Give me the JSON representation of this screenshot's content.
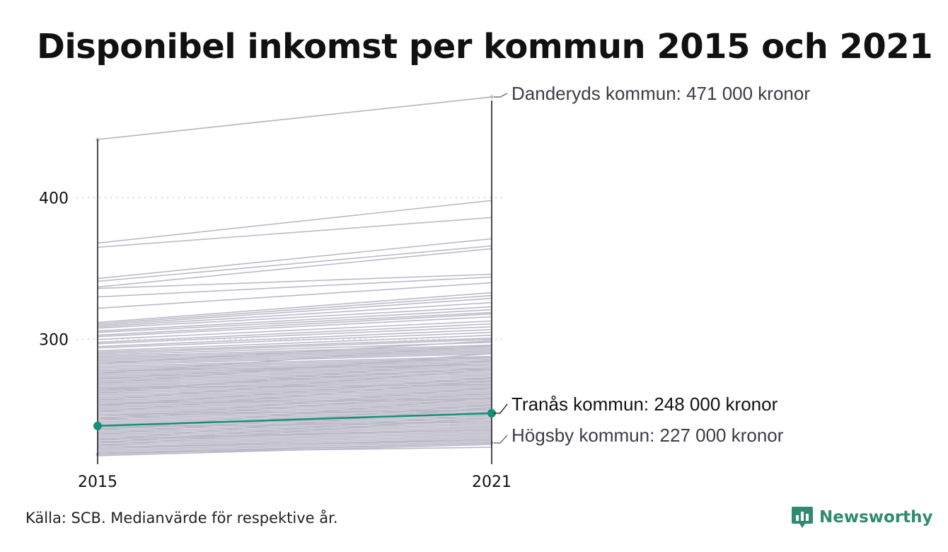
{
  "title": "Disponibel inkomst per kommun 2015 och 2021",
  "source": "Källa: SCB. Medianvärde för respektive år.",
  "brand": {
    "name": "Newsworthy",
    "color": "#2f8a72"
  },
  "colors": {
    "background_lines": "#bcbac8",
    "highlight": "#14907a",
    "axis": "#111111",
    "grid": "#d8d8d8"
  },
  "chart_data": {
    "type": "line",
    "title": "Disponibel inkomst per kommun 2015 och 2021",
    "x": [
      "2015",
      "2021"
    ],
    "ylim": [
      212,
      483
    ],
    "yticks": [
      300,
      400
    ],
    "ytick_labels": [
      "300",
      "400"
    ],
    "xtick_labels": [
      "2015",
      "2021"
    ],
    "grid": "horizontal dotted at y ticks",
    "legend": "none",
    "labeled_series": [
      {
        "name": "Danderyds kommun",
        "values": [
          441,
          471
        ],
        "label": "Danderyds kommun: 471 000 kronor",
        "highlight": false
      },
      {
        "name": "Tranås kommun",
        "values": [
          239,
          248
        ],
        "label": "Tranås kommun: 248 000 kronor",
        "highlight": true
      },
      {
        "name": "Högsby kommun",
        "values": [
          219,
          227
        ],
        "label": "Högsby kommun: 227 000 kronor",
        "highlight": false
      }
    ],
    "other_series": [
      [
        368,
        398
      ],
      [
        365,
        386
      ],
      [
        343,
        371
      ],
      [
        341,
        366
      ],
      [
        337,
        364
      ],
      [
        336,
        346
      ],
      [
        330,
        344
      ],
      [
        322,
        340
      ],
      [
        312,
        333
      ],
      [
        311,
        331
      ],
      [
        310,
        329
      ],
      [
        309,
        326
      ],
      [
        308,
        323
      ],
      [
        306,
        321
      ],
      [
        305,
        319
      ],
      [
        303,
        318
      ],
      [
        302,
        316
      ],
      [
        300,
        313
      ],
      [
        298,
        311
      ],
      [
        297,
        309
      ],
      [
        295,
        307
      ],
      [
        294,
        305
      ],
      [
        292,
        303
      ],
      [
        291,
        301
      ],
      [
        290,
        300
      ],
      [
        289,
        298
      ],
      [
        288,
        296
      ],
      [
        287,
        295
      ],
      [
        286,
        294
      ],
      [
        285,
        293
      ],
      [
        284,
        292
      ],
      [
        283,
        291
      ],
      [
        282,
        290
      ],
      [
        281,
        288
      ],
      [
        280,
        287
      ],
      [
        279,
        286
      ],
      [
        278,
        285
      ],
      [
        277,
        284
      ],
      [
        276,
        283
      ],
      [
        275,
        282
      ],
      [
        274,
        281
      ],
      [
        273,
        280
      ],
      [
        272,
        279
      ],
      [
        271,
        278
      ],
      [
        270,
        277
      ],
      [
        269,
        276
      ],
      [
        268,
        275
      ],
      [
        267,
        274
      ],
      [
        266,
        273
      ],
      [
        265,
        272
      ],
      [
        264,
        271
      ],
      [
        263,
        270
      ],
      [
        262,
        269
      ],
      [
        261,
        268
      ],
      [
        260,
        267
      ],
      [
        259,
        266
      ],
      [
        258,
        265
      ],
      [
        257,
        264
      ],
      [
        256,
        263
      ],
      [
        255,
        262
      ],
      [
        254,
        261
      ],
      [
        253,
        260
      ],
      [
        252,
        259
      ],
      [
        251,
        258
      ],
      [
        250,
        257
      ],
      [
        249,
        256
      ],
      [
        248,
        255
      ],
      [
        247,
        254
      ],
      [
        246,
        253
      ],
      [
        245,
        252
      ],
      [
        244,
        251
      ],
      [
        243,
        250
      ],
      [
        242,
        249
      ],
      [
        241,
        248
      ],
      [
        240,
        247
      ],
      [
        239,
        246
      ],
      [
        238,
        245
      ],
      [
        237,
        244
      ],
      [
        236,
        243
      ],
      [
        235,
        242
      ],
      [
        234,
        241
      ],
      [
        233,
        240
      ],
      [
        232,
        239
      ],
      [
        231,
        238
      ],
      [
        230,
        237
      ],
      [
        229,
        236
      ],
      [
        228,
        235
      ],
      [
        227,
        234
      ],
      [
        226,
        233
      ],
      [
        225,
        232
      ],
      [
        224,
        231
      ],
      [
        223,
        230
      ],
      [
        222,
        229
      ],
      [
        221,
        228
      ],
      [
        220,
        227
      ],
      [
        218,
        226
      ],
      [
        283,
        299
      ],
      [
        276,
        296
      ],
      [
        269,
        290
      ],
      [
        262,
        285
      ],
      [
        257,
        279
      ],
      [
        249,
        271
      ],
      [
        244,
        266
      ],
      [
        236,
        259
      ],
      [
        229,
        252
      ],
      [
        225,
        245
      ],
      [
        278,
        282
      ],
      [
        266,
        268
      ],
      [
        255,
        258
      ],
      [
        247,
        250
      ],
      [
        238,
        242
      ],
      [
        230,
        236
      ],
      [
        224,
        229
      ],
      [
        220,
        224
      ],
      [
        272,
        288
      ],
      [
        264,
        280
      ],
      [
        253,
        273
      ],
      [
        243,
        262
      ],
      [
        233,
        254
      ],
      [
        227,
        247
      ]
    ]
  }
}
